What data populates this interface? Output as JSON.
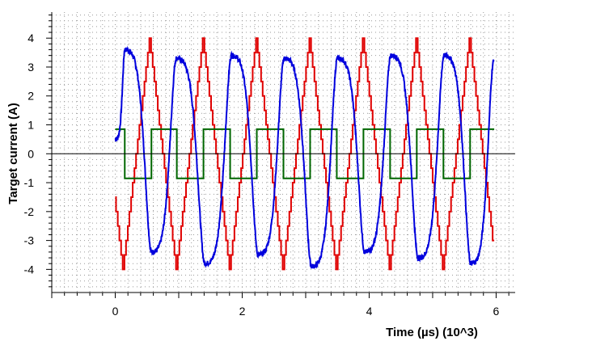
{
  "chart_data": {
    "type": "line",
    "title": "",
    "xlabel": "Time (µs) (10^3)",
    "ylabel": "Target current (A)",
    "xlim": [
      -1,
      6.3
    ],
    "ylim": [
      -4.8,
      4.9
    ],
    "x_ticks": [
      0,
      2,
      4,
      6
    ],
    "x_tick_labels": [
      "0",
      "2",
      "4",
      "6"
    ],
    "y_ticks": [
      -4,
      -3,
      -2,
      -1,
      0,
      1,
      2,
      3,
      4
    ],
    "y_tick_labels": [
      "-4",
      "-3",
      "-2",
      "-1",
      "0",
      "1",
      "2",
      "3",
      "4"
    ],
    "grid": "dotted",
    "zero_line": true,
    "series": [
      {
        "color": "#e00000",
        "style": "step",
        "period": 0.84,
        "phase": 0.97,
        "amplitude": 4,
        "levels": 8,
        "x_range": [
          0,
          5.97
        ]
      },
      {
        "color": "#0000dd",
        "style": "noisy",
        "period": 0.84,
        "max_at": [
          0.15,
          0.96,
          1.83,
          2.66,
          3.5,
          4.34,
          5.18,
          5.96
        ],
        "min_at": [
          0.57,
          1.41,
          2.25,
          3.09,
          3.93,
          4.77,
          5.6
        ],
        "peak_values": [
          3.6,
          3.3,
          3.4,
          3.3,
          3.3,
          3.4,
          3.4,
          3.2
        ],
        "trough_values": [
          -3.4,
          -3.8,
          -3.5,
          -3.9,
          -3.4,
          -3.6,
          -3.8
        ],
        "x_range": [
          0,
          5.97
        ]
      },
      {
        "color": "#006600",
        "style": "square",
        "high": 0.85,
        "low": -0.85,
        "transitions": [
          0.15,
          0.57,
          0.97,
          1.39,
          1.81,
          2.23,
          2.65,
          3.07,
          3.49,
          3.91,
          4.33,
          4.75,
          5.17,
          5.59,
          5.97
        ],
        "start_value": 0.85,
        "x_range": [
          0,
          5.97
        ]
      }
    ]
  }
}
